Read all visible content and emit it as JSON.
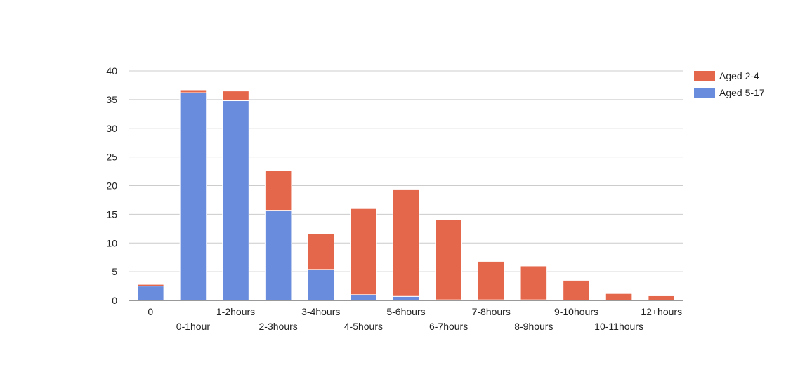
{
  "chart_data": {
    "type": "bar",
    "stacked": true,
    "categories": [
      "0",
      "0-1hour",
      "1-2hours",
      "2-3hours",
      "3-4hours",
      "4-5hours",
      "5-6hours",
      "6-7hours",
      "7-8hours",
      "8-9hours",
      "9-10hours",
      "10-11hours",
      "12+hours"
    ],
    "series": [
      {
        "name": "Aged 5-17",
        "color": "#6a8cdc",
        "values": [
          2.5,
          36.2,
          34.8,
          15.7,
          5.4,
          1.0,
          0.7,
          0.1,
          0.1,
          0.1,
          0,
          0,
          0
        ]
      },
      {
        "name": "Aged 2-4",
        "color": "#e5674b",
        "values": [
          0.3,
          0.5,
          1.7,
          6.9,
          6.2,
          15.0,
          18.7,
          14.0,
          6.7,
          5.9,
          3.5,
          1.2,
          0.8
        ]
      }
    ],
    "ylim": [
      0,
      40
    ],
    "yticks": [
      0,
      5,
      10,
      15,
      20,
      25,
      30,
      35,
      40
    ],
    "grid": true,
    "legend": "right",
    "title": "",
    "xlabel": "",
    "ylabel": ""
  }
}
